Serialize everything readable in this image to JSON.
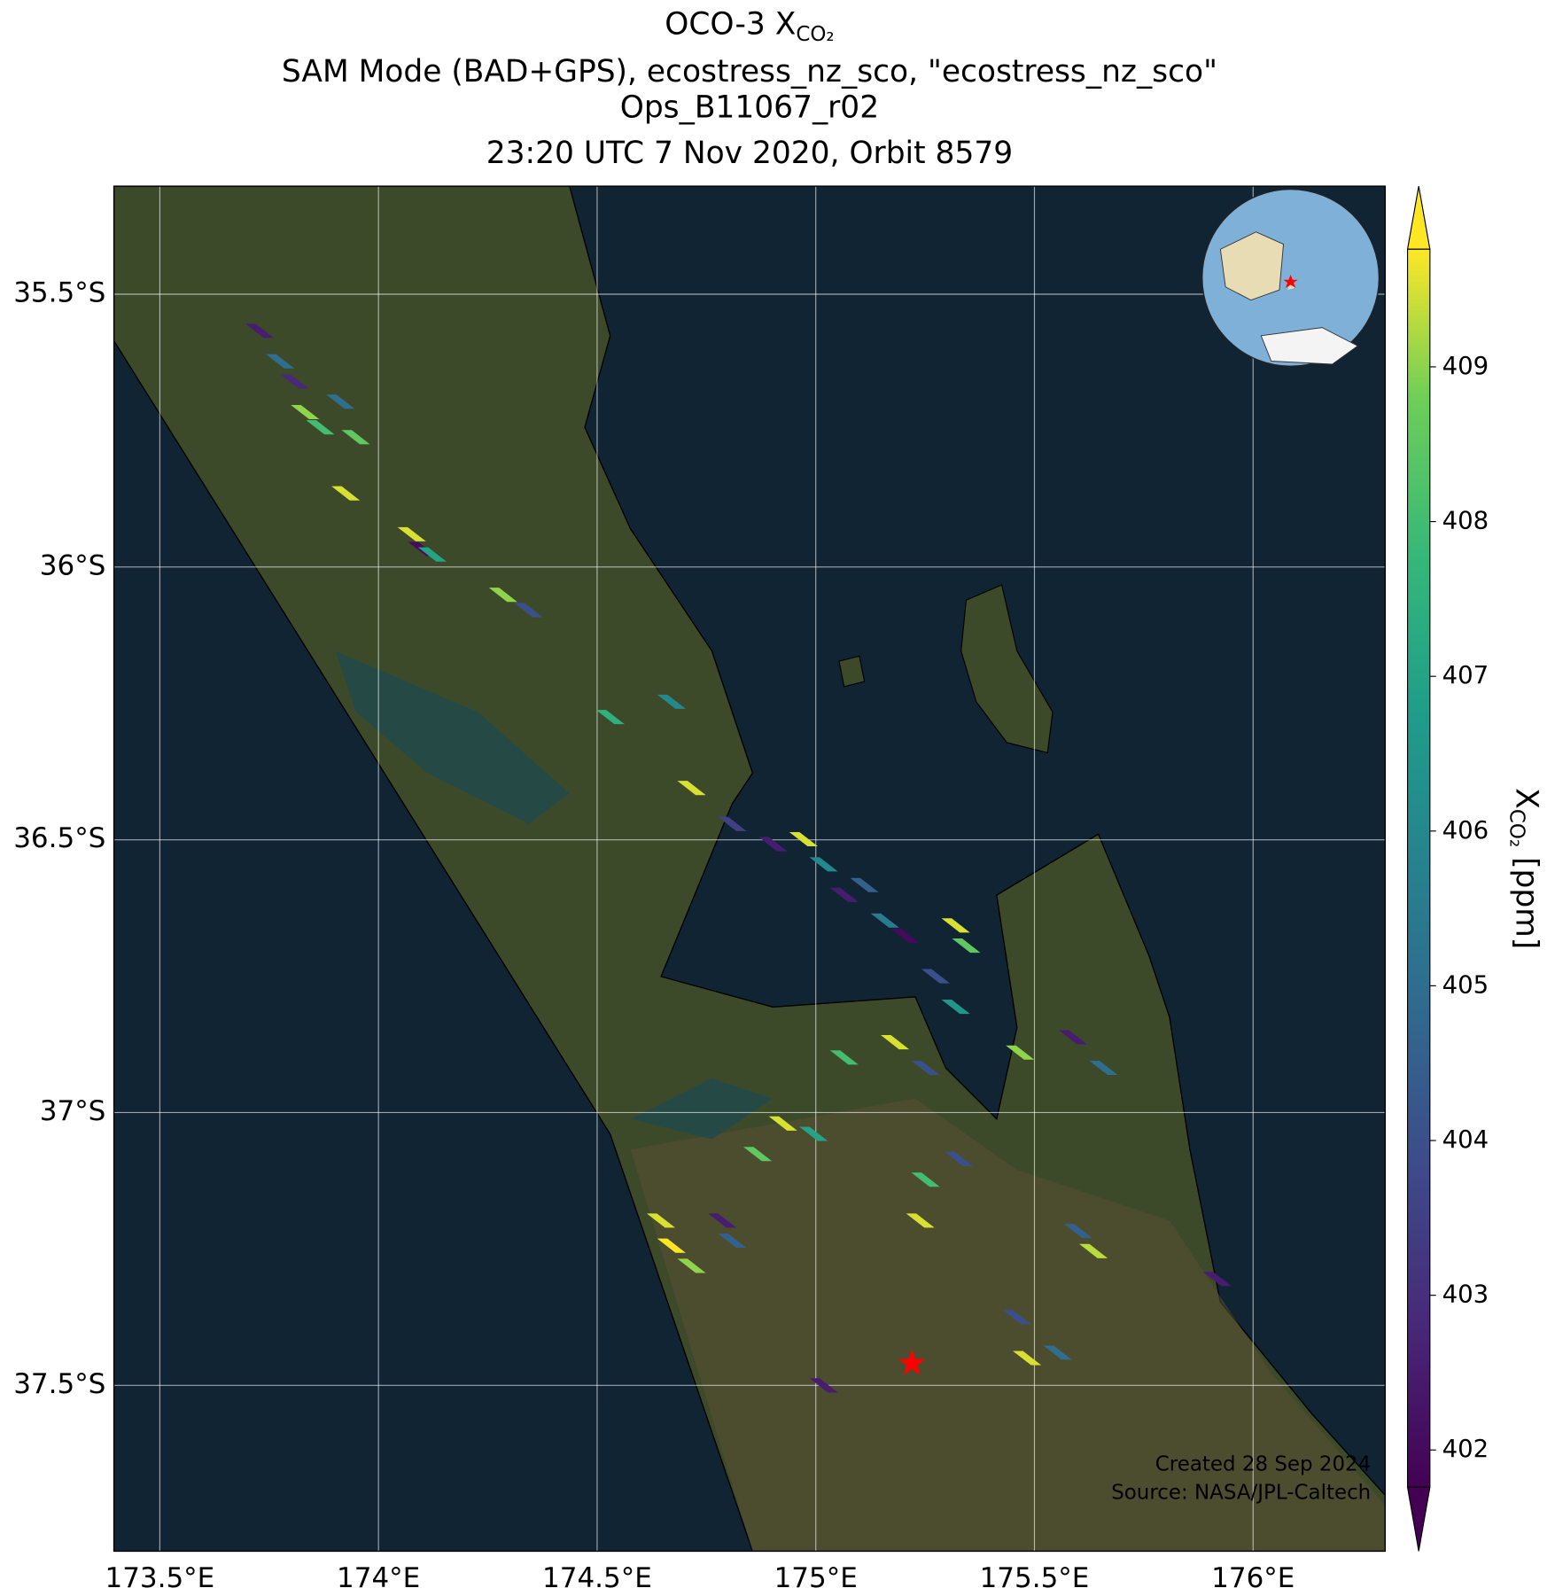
{
  "chart_data": {
    "type": "map",
    "title_lines": [
      {
        "main": "OCO-3 X",
        "subscript": "CO₂"
      },
      "SAM Mode (BAD+GPS), ecostress_nz_sco, \"ecostress_nz_sco\"",
      "Ops_B11067_r02",
      "23:20 UTC 7 Nov 2020, Orbit 8579"
    ],
    "xlim": [
      173.395,
      176.302
    ],
    "ylim": [
      -37.804,
      -35.302
    ],
    "xticks": [
      {
        "value": 173.5,
        "label": "173.5°E"
      },
      {
        "value": 174,
        "label": "174°E"
      },
      {
        "value": 174.5,
        "label": "174.5°E"
      },
      {
        "value": 175,
        "label": "175°E"
      },
      {
        "value": 175.5,
        "label": "175.5°E"
      },
      {
        "value": 176,
        "label": "176°E"
      }
    ],
    "yticks": [
      {
        "value": -35.5,
        "label": "35.5°S"
      },
      {
        "value": -36,
        "label": "36°S"
      },
      {
        "value": -36.5,
        "label": "36.5°S"
      },
      {
        "value": -37,
        "label": "37°S"
      },
      {
        "value": -37.5,
        "label": "37.5°S"
      }
    ],
    "grid": true,
    "colormap": "viridis",
    "clim": [
      401.76,
      409.76
    ],
    "colorbar_ticks": [
      402,
      403,
      404,
      405,
      406,
      407,
      408,
      409
    ],
    "colorbar_label": {
      "main": "X",
      "subscript": "CO₂",
      "unit": "[ppm]"
    },
    "target": {
      "lon": 175.22,
      "lat": -37.46,
      "color": "#ff0000"
    },
    "annotations": [
      "Created 28 Sep 2024",
      "Source: NASA/JPL-Caltech"
    ],
    "soundings": [
      [
        173.728,
        -35.567,
        402.5
      ],
      [
        173.775,
        -35.623,
        405
      ],
      [
        173.808,
        -35.66,
        402.8
      ],
      [
        173.832,
        -35.716,
        409
      ],
      [
        173.867,
        -35.744,
        408
      ],
      [
        173.913,
        -35.697,
        405
      ],
      [
        173.948,
        -35.762,
        408.5
      ],
      [
        173.925,
        -35.865,
        409.5
      ],
      [
        174.076,
        -35.94,
        409.5
      ],
      [
        174.1,
        -35.967,
        402
      ],
      [
        174.123,
        -35.977,
        407
      ],
      [
        174.285,
        -36.051,
        409
      ],
      [
        174.343,
        -36.079,
        404
      ],
      [
        174.53,
        -36.275,
        407.5
      ],
      [
        174.67,
        -36.247,
        406
      ],
      [
        174.716,
        -36.405,
        409.5
      ],
      [
        174.809,
        -36.471,
        403.5
      ],
      [
        174.902,
        -36.508,
        402.5
      ],
      [
        174.972,
        -36.499,
        409.5
      ],
      [
        175.018,
        -36.545,
        406
      ],
      [
        175.065,
        -36.601,
        402.5
      ],
      [
        175.111,
        -36.583,
        404.5
      ],
      [
        175.158,
        -36.648,
        405.5
      ],
      [
        175.204,
        -36.676,
        402
      ],
      [
        175.32,
        -36.657,
        409.5
      ],
      [
        175.344,
        -36.694,
        408.5
      ],
      [
        175.274,
        -36.75,
        404
      ],
      [
        175.32,
        -36.806,
        406.5
      ],
      [
        175.181,
        -36.871,
        409.5
      ],
      [
        175.251,
        -36.918,
        404
      ],
      [
        174.925,
        -37.02,
        409.5
      ],
      [
        174.995,
        -37.039,
        407
      ],
      [
        174.867,
        -37.076,
        408.5
      ],
      [
        174.646,
        -37.198,
        409.5
      ],
      [
        174.67,
        -37.244,
        409.8
      ],
      [
        174.716,
        -37.281,
        409
      ],
      [
        174.786,
        -37.198,
        402.5
      ],
      [
        174.809,
        -37.235,
        404.5
      ],
      [
        175.239,
        -37.198,
        409.5
      ],
      [
        175.251,
        -37.123,
        408
      ],
      [
        175.483,
        -37.45,
        409.5
      ],
      [
        175.553,
        -37.44,
        405
      ],
      [
        175.46,
        -37.375,
        404
      ],
      [
        175.635,
        -37.254,
        409.3
      ],
      [
        175.6,
        -37.217,
        404.5
      ],
      [
        175.588,
        -36.862,
        402.5
      ],
      [
        175.658,
        -36.918,
        405
      ],
      [
        175.918,
        -37.305,
        402.5
      ],
      [
        175.018,
        -37.5,
        402.5
      ],
      [
        175.327,
        -37.085,
        404
      ],
      [
        175.467,
        -36.89,
        409
      ],
      [
        175.065,
        -36.899,
        408
      ]
    ]
  }
}
